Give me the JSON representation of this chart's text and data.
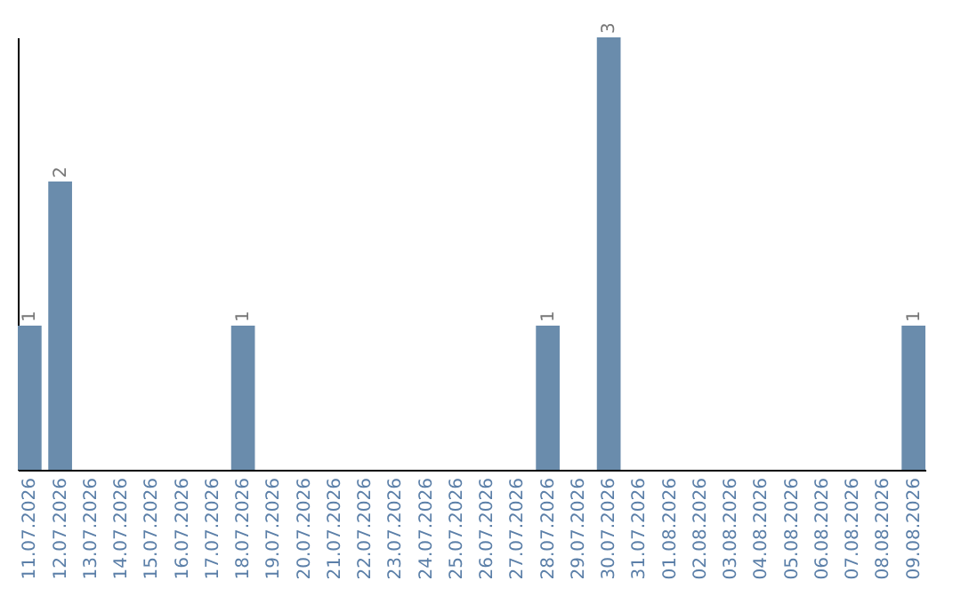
{
  "chart_data": {
    "type": "bar",
    "categories": [
      "11.07.2026",
      "12.07.2026",
      "13.07.2026",
      "14.07.2026",
      "15.07.2026",
      "16.07.2026",
      "17.07.2026",
      "18.07.2026",
      "19.07.2026",
      "20.07.2026",
      "21.07.2026",
      "22.07.2026",
      "23.07.2026",
      "24.07.2026",
      "25.07.2026",
      "26.07.2026",
      "27.07.2026",
      "28.07.2026",
      "29.07.2026",
      "30.07.2026",
      "31.07.2026",
      "01.08.2026",
      "02.08.2026",
      "03.08.2026",
      "04.08.2026",
      "05.08.2026",
      "06.08.2026",
      "07.08.2026",
      "08.08.2026",
      "09.08.2026"
    ],
    "values": [
      1,
      2,
      0,
      0,
      0,
      0,
      0,
      1,
      0,
      0,
      0,
      0,
      0,
      0,
      0,
      0,
      0,
      1,
      0,
      3,
      0,
      0,
      0,
      0,
      0,
      0,
      0,
      0,
      0,
      1
    ],
    "value_labels": [
      "1",
      "2",
      null,
      null,
      null,
      null,
      null,
      "1",
      null,
      null,
      null,
      null,
      null,
      null,
      null,
      null,
      null,
      "1",
      null,
      "3",
      null,
      null,
      null,
      null,
      null,
      null,
      null,
      null,
      null,
      "1"
    ],
    "color": "#6a8cac",
    "tick_labels": "x",
    "grid": false
  }
}
